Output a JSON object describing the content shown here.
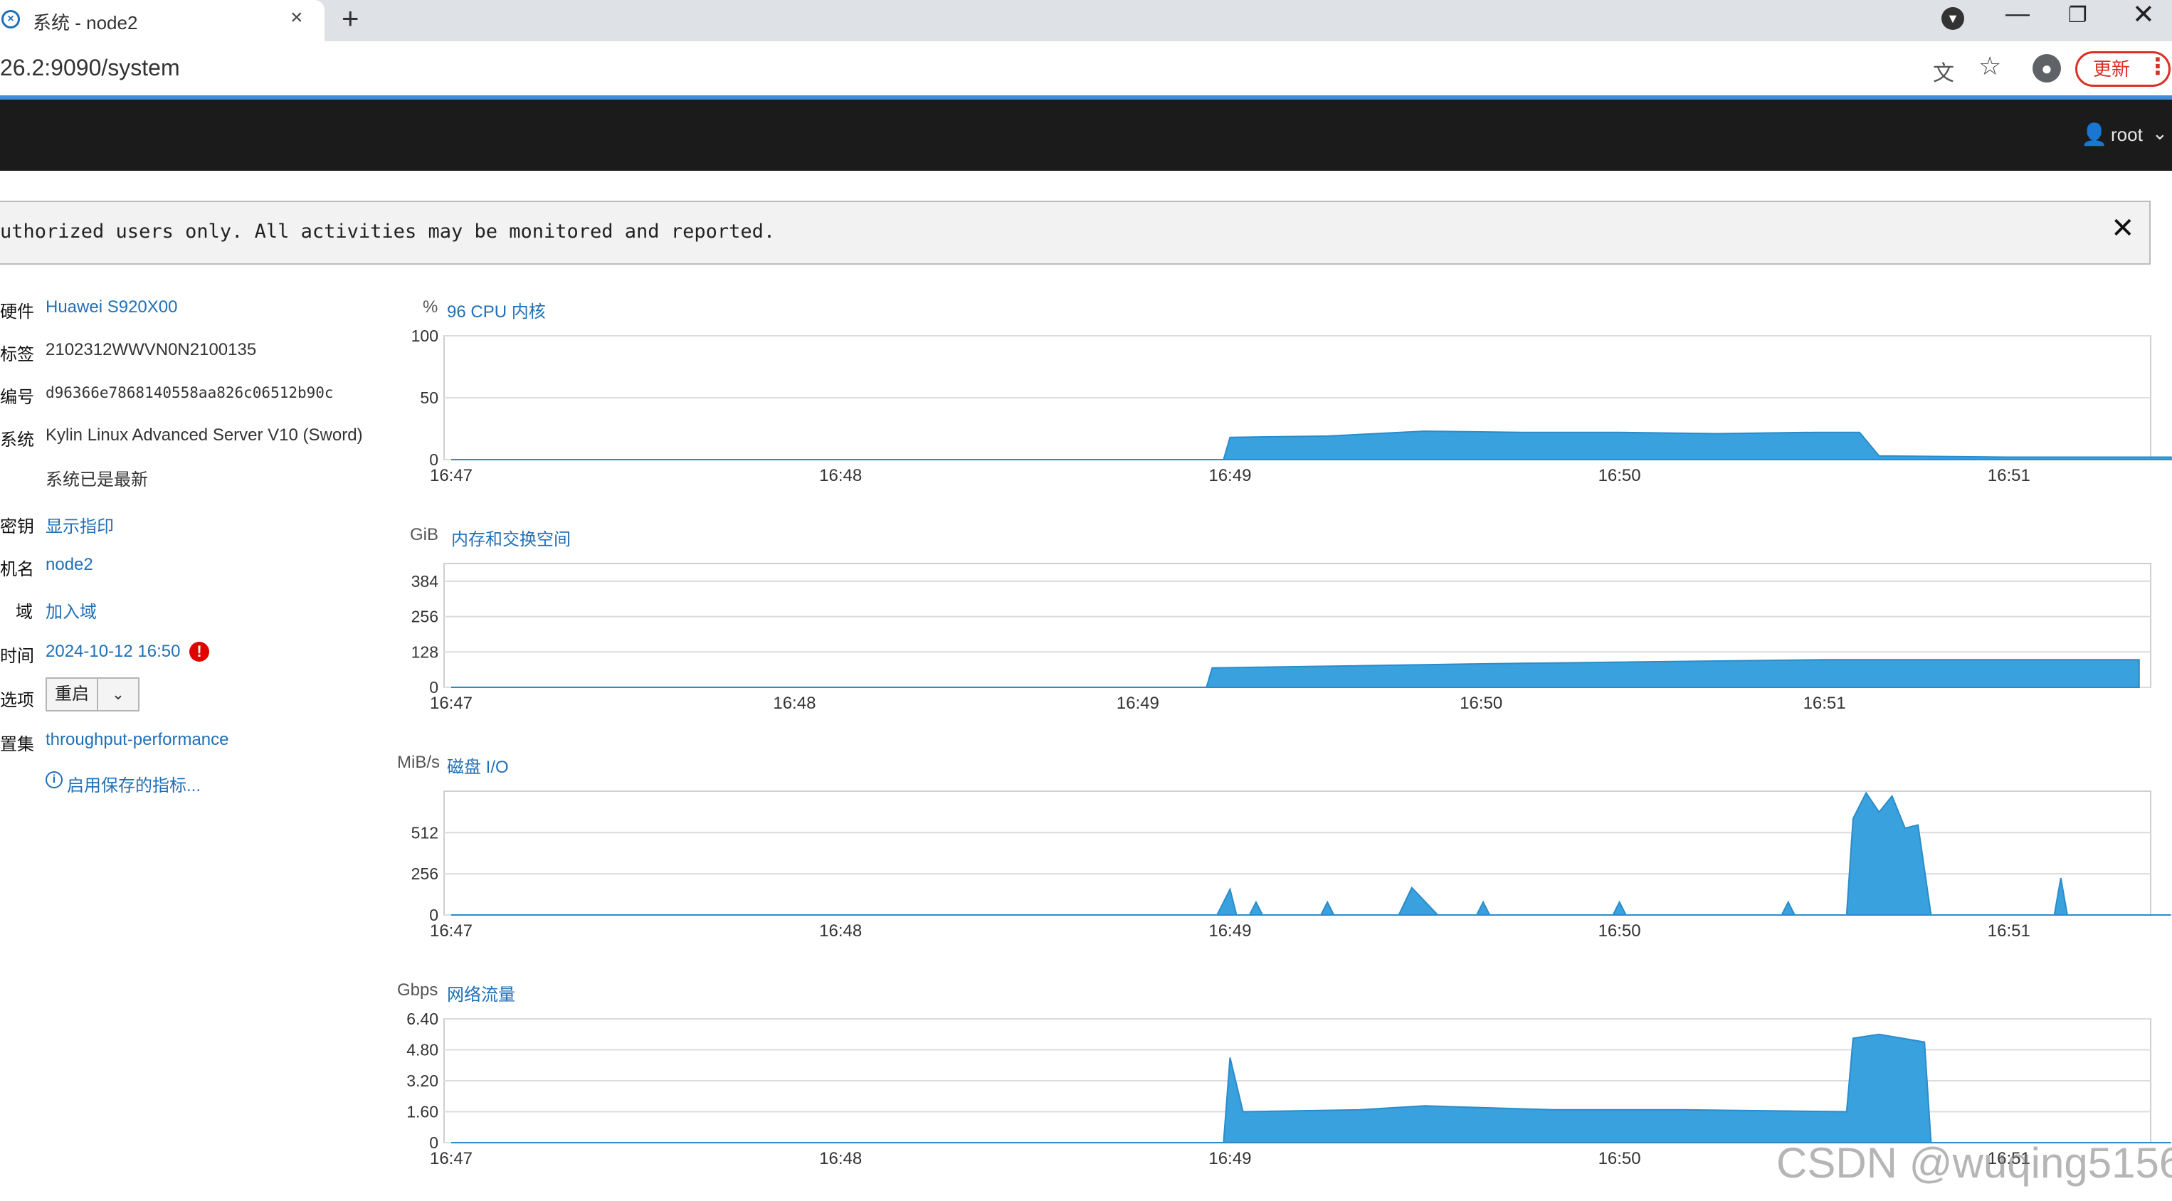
{
  "browser": {
    "tab_title": "系统 - node2",
    "tab_close": "×",
    "new_tab": "+",
    "url": "26.2:9090/system",
    "update_label": "更新",
    "window": {
      "minimize": "—",
      "maximize": "❐",
      "close": "✕"
    }
  },
  "header": {
    "user": "root"
  },
  "banner": {
    "text": "uthorized users only. All activities may be monitored and reported.",
    "close": "✕"
  },
  "info": {
    "hardware_label": "硬件",
    "hardware_value": "Huawei S920X00",
    "asset_label": "标签",
    "asset_value": "2102312WWVN0N2100135",
    "machine_id_label": "编号",
    "machine_id_value": "d96366e7868140558aa826c06512b90c",
    "os_label": "系统",
    "os_value": "Kylin Linux Advanced Server V10 (Sword)",
    "os_status": "系统已是最新",
    "key_label": "密钥",
    "key_value": "显示指印",
    "hostname_label": "机名",
    "hostname_value": "node2",
    "domain_label": "域",
    "domain_value": "加入域",
    "time_label": "时间",
    "time_value": "2024-10-12 16:50",
    "power_label": "选项",
    "power_button": "重启",
    "profile_label": "置集",
    "profile_value": "throughput-performance",
    "metrics_link": "启用保存的指标..."
  },
  "watermark": "CSDN @wuqing5156",
  "chart_data": [
    {
      "type": "area",
      "unit": "%",
      "title": "96 CPU 内核",
      "ylim": [
        0,
        100
      ],
      "yticks": [
        "0",
        "50",
        "100"
      ],
      "x_ticks": [
        "16:47",
        "16:48",
        "16:49",
        "16:50",
        "16:51"
      ],
      "x": [
        "16:47",
        "16:48",
        "16:48:59",
        "16:49",
        "16:49:15",
        "16:49:30",
        "16:49:45",
        "16:50",
        "16:50:15",
        "16:50:30",
        "16:50:37",
        "16:50:40",
        "16:51",
        "16:51:25"
      ],
      "values": [
        0,
        0,
        0,
        18,
        19,
        23,
        22,
        22,
        21,
        22,
        22,
        3,
        2,
        2
      ]
    },
    {
      "type": "area",
      "unit": "GiB",
      "title": "内存和交换空间",
      "ylim": [
        0,
        448
      ],
      "yticks": [
        "0",
        "128",
        "256",
        "384"
      ],
      "x_ticks": [
        "16:47",
        "16:48",
        "16:49",
        "16:50",
        "16:51"
      ],
      "x": [
        "16:47",
        "16:49:12",
        "16:49:13",
        "16:50",
        "16:51",
        "16:51:55"
      ],
      "values": [
        0,
        0,
        70,
        85,
        100,
        100
      ]
    },
    {
      "type": "area",
      "unit": "MiB/s",
      "title": "磁盘 I/O",
      "ylim": [
        0,
        770
      ],
      "yticks": [
        "0",
        "256",
        "512"
      ],
      "x_ticks": [
        "16:47",
        "16:48",
        "16:49",
        "16:50",
        "16:51"
      ],
      "x": [
        "16:47",
        "16:48:58",
        "16:49",
        "16:49:01",
        "16:49:03",
        "16:49:04",
        "16:49:05",
        "16:49:14",
        "16:49:15",
        "16:49:16",
        "16:49:26",
        "16:49:28",
        "16:49:32",
        "16:49:38",
        "16:49:39",
        "16:49:40",
        "16:49:59",
        "16:50:00",
        "16:50:01",
        "16:50:25",
        "16:50:26",
        "16:50:27",
        "16:50:35",
        "16:50:36",
        "16:50:38",
        "16:50:40",
        "16:50:42",
        "16:50:44",
        "16:50:46",
        "16:50:48",
        "16:50:50",
        "16:51:07",
        "16:51:08",
        "16:51:09",
        "16:51:25"
      ],
      "values": [
        0,
        0,
        160,
        0,
        0,
        80,
        0,
        0,
        80,
        0,
        0,
        170,
        0,
        0,
        80,
        0,
        0,
        80,
        0,
        0,
        80,
        0,
        0,
        600,
        760,
        640,
        740,
        540,
        560,
        0,
        0,
        0,
        230,
        0,
        0
      ]
    },
    {
      "type": "area",
      "unit": "Gbps",
      "title": "网络流量",
      "ylim": [
        0,
        6.4
      ],
      "yticks": [
        "0",
        "1.60",
        "3.20",
        "4.80",
        "6.40"
      ],
      "x_ticks": [
        "16:47",
        "16:48",
        "16:49",
        "16:50",
        "16:51"
      ],
      "x": [
        "16:47",
        "16:48:59",
        "16:49",
        "16:49:02",
        "16:49:20",
        "16:49:30",
        "16:49:50",
        "16:50:10",
        "16:50:35",
        "16:50:36",
        "16:50:40",
        "16:50:47",
        "16:50:48",
        "16:51:25"
      ],
      "values": [
        0,
        0,
        4.4,
        1.6,
        1.7,
        1.9,
        1.7,
        1.7,
        1.6,
        5.4,
        5.6,
        5.2,
        0,
        0
      ]
    }
  ]
}
